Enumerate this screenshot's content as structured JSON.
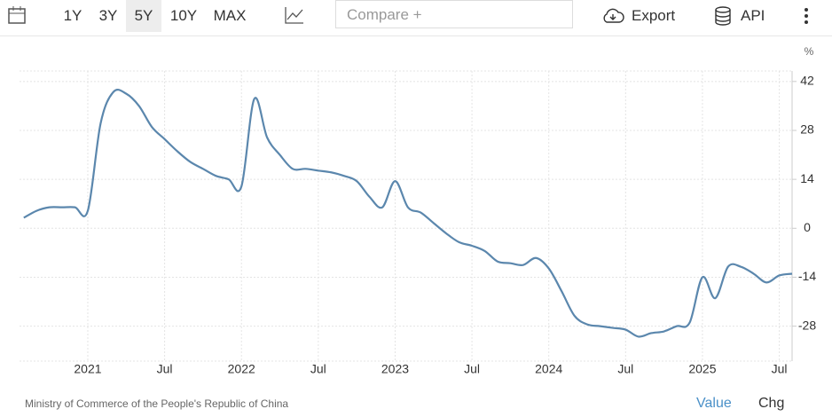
{
  "toolbar": {
    "ranges": [
      "1Y",
      "3Y",
      "5Y",
      "10Y",
      "MAX"
    ],
    "selected": "5Y",
    "compare": "Compare +",
    "export": "Export",
    "api": "API"
  },
  "chart_data": {
    "type": "line",
    "unit": "%",
    "x": [
      "2020-08",
      "2020-09",
      "2020-10",
      "2020-11",
      "2020-12",
      "2021-01",
      "2021-02",
      "2021-03",
      "2021-04",
      "2021-05",
      "2021-06",
      "2021-07",
      "2021-08",
      "2021-09",
      "2021-10",
      "2021-11",
      "2021-12",
      "2022-01",
      "2022-02",
      "2022-03",
      "2022-04",
      "2022-05",
      "2022-06",
      "2022-07",
      "2022-08",
      "2022-09",
      "2022-10",
      "2022-11",
      "2022-12",
      "2023-01",
      "2023-02",
      "2023-03",
      "2023-04",
      "2023-05",
      "2023-06",
      "2023-07",
      "2023-08",
      "2023-09",
      "2023-10",
      "2023-11",
      "2023-12",
      "2024-01",
      "2024-02",
      "2024-03",
      "2024-04",
      "2024-05",
      "2024-06",
      "2024-07",
      "2024-08",
      "2024-09",
      "2024-10",
      "2024-11",
      "2024-12",
      "2025-01",
      "2025-02",
      "2025-03",
      "2025-04",
      "2025-05",
      "2025-06",
      "2025-07",
      "2025-08"
    ],
    "series": [
      {
        "name": "Value",
        "color": "#5b87ad",
        "values": [
          3,
          5,
          6,
          6,
          6,
          5,
          30,
          39,
          38.5,
          35,
          29,
          25.5,
          22,
          19,
          17,
          15,
          14,
          12,
          37,
          26,
          21,
          17,
          17,
          16.5,
          16,
          15,
          13.5,
          9,
          6,
          13.5,
          6,
          4.5,
          1.5,
          -1.5,
          -4,
          -5,
          -6.5,
          -9.5,
          -10,
          -10.5,
          -8.5,
          -11.5,
          -18,
          -25,
          -27.5,
          -28,
          -28.5,
          -29,
          -31,
          -30,
          -29.5,
          -28,
          -27,
          -14,
          -20,
          -11,
          -11,
          -13,
          -15.5,
          -13.5,
          -13
        ]
      }
    ],
    "xticks": [
      {
        "value": "2021-01",
        "label": "2021"
      },
      {
        "value": "2021-07",
        "label": "Jul"
      },
      {
        "value": "2022-01",
        "label": "2022"
      },
      {
        "value": "2022-07",
        "label": "Jul"
      },
      {
        "value": "2023-01",
        "label": "2023"
      },
      {
        "value": "2023-07",
        "label": "Jul"
      },
      {
        "value": "2024-01",
        "label": "2024"
      },
      {
        "value": "2024-07",
        "label": "Jul"
      },
      {
        "value": "2025-01",
        "label": "2025"
      },
      {
        "value": "2025-07",
        "label": "Jul"
      }
    ],
    "ylim": [
      -38,
      45
    ],
    "yticks": [
      -28,
      -14,
      0,
      14,
      28,
      42
    ],
    "grid": true,
    "source": "Ministry of Commerce of the People's Republic of China"
  },
  "footer": {
    "value": "Value",
    "chg": "Chg"
  }
}
